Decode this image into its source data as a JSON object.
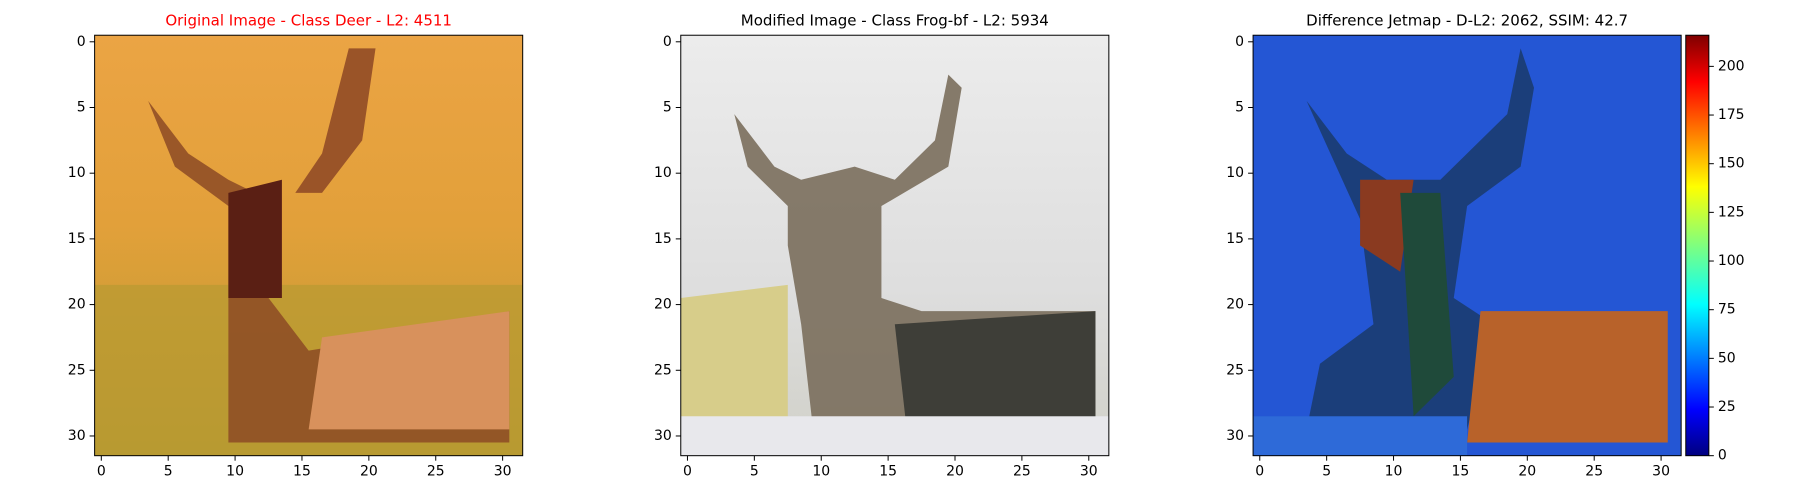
{
  "chart_data": [
    {
      "type": "image",
      "title": "Original Image - Class Deer - L2: 4511",
      "title_color": "#ff0000",
      "xlim": [
        -0.5,
        31.5
      ],
      "ylim": [
        31.5,
        -0.5
      ],
      "xticks": [
        0,
        5,
        10,
        15,
        20,
        25,
        30
      ],
      "yticks": [
        0,
        5,
        10,
        15,
        20,
        25,
        30
      ]
    },
    {
      "type": "image",
      "title": "Modified Image - Class Frog-bf - L2: 5934",
      "title_color": "#000000",
      "xlim": [
        -0.5,
        31.5
      ],
      "ylim": [
        31.5,
        -0.5
      ],
      "xticks": [
        0,
        5,
        10,
        15,
        20,
        25,
        30
      ],
      "yticks": [
        0,
        5,
        10,
        15,
        20,
        25,
        30
      ]
    },
    {
      "type": "image",
      "title": "Difference Jetmap - D-L2: 2062, SSIM: 42.7",
      "title_color": "#000000",
      "xlim": [
        -0.5,
        31.5
      ],
      "ylim": [
        31.5,
        -0.5
      ],
      "xticks": [
        0,
        5,
        10,
        15,
        20,
        25,
        30
      ],
      "yticks": [
        0,
        5,
        10,
        15,
        20,
        25,
        30
      ],
      "colorbar": {
        "colormap": "jet",
        "lim": [
          0,
          216
        ],
        "ticks": [
          0,
          25,
          50,
          75,
          100,
          125,
          150,
          175,
          200
        ]
      }
    }
  ]
}
